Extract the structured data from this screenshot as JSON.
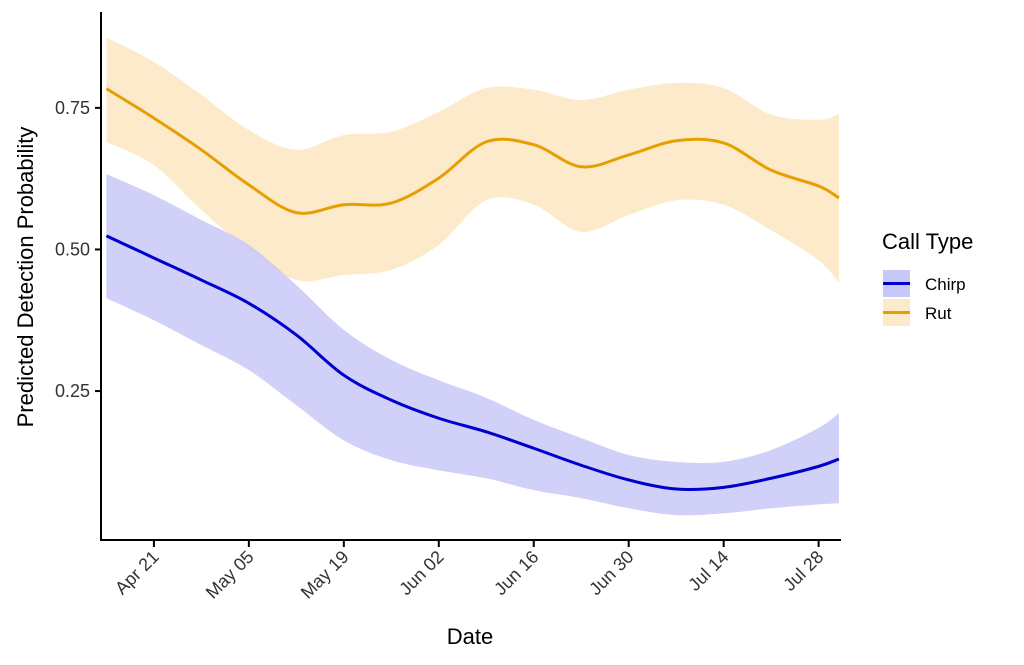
{
  "chart_data": {
    "type": "line",
    "title": "",
    "xlabel": "Date",
    "ylabel": "Predicted Detection Probability",
    "ylim": [
      -0.013,
      0.914
    ],
    "xlim_days": [
      -7.8,
      101.3
    ],
    "x_origin_date": "Apr 21",
    "yticks": [
      0.25,
      0.5,
      0.75
    ],
    "ytick_labels": [
      "0.25",
      "0.50",
      "0.75"
    ],
    "xticks_days": [
      0,
      14,
      28,
      42,
      56,
      70,
      84,
      98
    ],
    "xtick_labels": [
      "Apr 21",
      "May 05",
      "May 19",
      "Jun 02",
      "Jun 16",
      "Jun 30",
      "Jul 14",
      "Jul 28"
    ],
    "grid": false,
    "legend": {
      "title": "Call Type",
      "placement": "right"
    },
    "x_days": [
      -7,
      0,
      7,
      14,
      21,
      28,
      35,
      42,
      49,
      56,
      63,
      70,
      77,
      84,
      91,
      98,
      101
    ],
    "x_dates": [
      "Apr 14",
      "Apr 21",
      "Apr 28",
      "May 05",
      "May 12",
      "May 19",
      "May 26",
      "Jun 02",
      "Jun 09",
      "Jun 16",
      "Jun 23",
      "Jun 30",
      "Jul 07",
      "Jul 14",
      "Jul 21",
      "Jul 28",
      "Jul 31"
    ],
    "series": [
      {
        "name": "Chirp",
        "line_color": "#0000CC",
        "fill_color": "#C8C8F8",
        "values": [
          0.524,
          0.485,
          0.446,
          0.405,
          0.349,
          0.278,
          0.234,
          0.202,
          0.178,
          0.149,
          0.119,
          0.093,
          0.077,
          0.08,
          0.096,
          0.117,
          0.13
        ],
        "upper": [
          0.633,
          0.596,
          0.552,
          0.508,
          0.437,
          0.358,
          0.305,
          0.269,
          0.238,
          0.199,
          0.167,
          0.137,
          0.125,
          0.125,
          0.146,
          0.185,
          0.211
        ],
        "lower": [
          0.414,
          0.375,
          0.331,
          0.287,
          0.225,
          0.163,
          0.128,
          0.11,
          0.096,
          0.075,
          0.061,
          0.043,
          0.031,
          0.034,
          0.043,
          0.05,
          0.052
        ]
      },
      {
        "name": "Rut",
        "line_color": "#E69F00",
        "fill_color": "#FDEACB",
        "values": [
          0.784,
          0.732,
          0.676,
          0.614,
          0.565,
          0.579,
          0.582,
          0.626,
          0.69,
          0.685,
          0.646,
          0.667,
          0.692,
          0.688,
          0.64,
          0.612,
          0.591
        ],
        "upper": [
          0.874,
          0.831,
          0.773,
          0.711,
          0.676,
          0.702,
          0.708,
          0.743,
          0.785,
          0.782,
          0.764,
          0.782,
          0.794,
          0.785,
          0.738,
          0.729,
          0.739
        ],
        "lower": [
          0.69,
          0.649,
          0.57,
          0.499,
          0.446,
          0.455,
          0.464,
          0.508,
          0.587,
          0.579,
          0.531,
          0.561,
          0.587,
          0.579,
          0.534,
          0.481,
          0.441
        ]
      }
    ]
  }
}
